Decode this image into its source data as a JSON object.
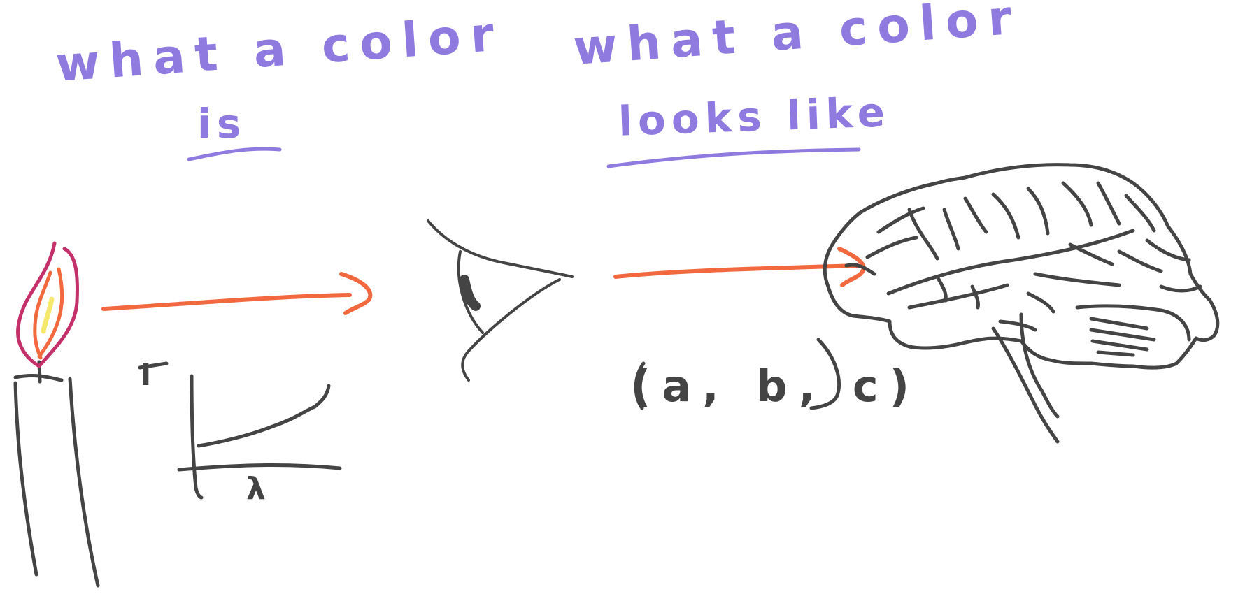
{
  "titles": {
    "left_line1": "what a color",
    "left_line2": "is",
    "right_line1": "what a color",
    "right_line2": "looks like"
  },
  "labels": {
    "triple": "(a, b, c)",
    "intensity_axis": "I",
    "wavelength_axis": "λ"
  },
  "colors": {
    "title": "#8f7ae0",
    "arrow": "#f2683f",
    "sketch": "#444444",
    "flame_outer": "#c4306a",
    "flame_mid": "#f2683f",
    "flame_inner": "#f5e86a"
  },
  "icons": [
    "candle-icon",
    "flame-icon",
    "eye-icon",
    "brain-icon",
    "arrow-right-icon"
  ]
}
